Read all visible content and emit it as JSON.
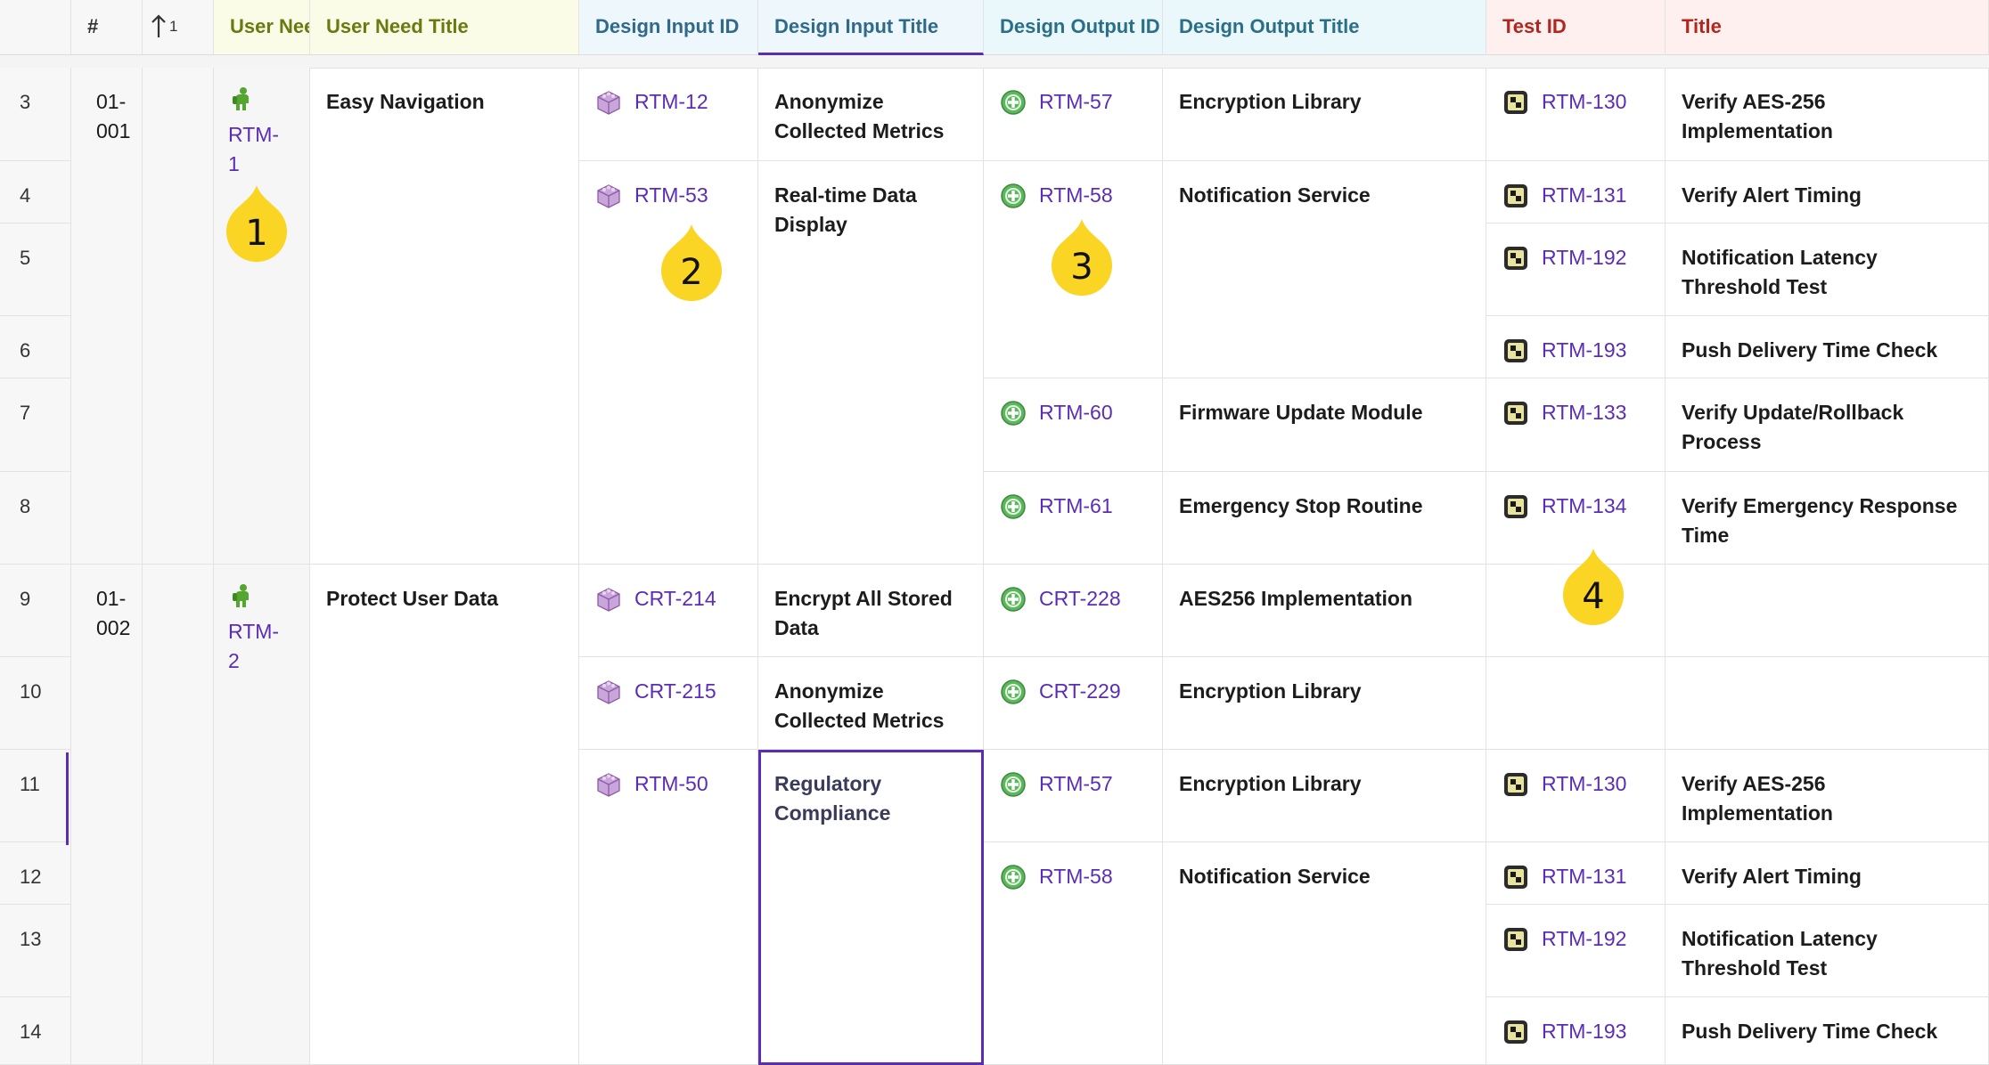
{
  "headers": {
    "num": "#",
    "sort": "1",
    "user_need_id": "User Need",
    "user_need_title": "User Need Title",
    "design_input_id": "Design Input ID",
    "design_input_title": "Design Input Title",
    "design_output_id": "Design Output ID",
    "design_output_title": "Design Output Title",
    "test_id": "Test ID",
    "test_title": "Title"
  },
  "colors": {
    "user_need_header_bg": "#fbfce8",
    "user_need_header_text": "#6b7a10",
    "design_input_header_bg": "#eef7fb",
    "design_input_header_text": "#2f6a8a",
    "design_output_header_bg": "#eaf7fb",
    "design_output_header_text": "#2a6f88",
    "test_header_bg": "#fdf0ee",
    "test_header_text": "#b3261e",
    "link": "#5b2db5",
    "callout": "#fad523"
  },
  "icons": {
    "user_need": "person-icon",
    "design_input": "cube-icon",
    "design_output": "plus-circle-icon",
    "test": "test-tube-icon"
  },
  "row_numbers": [
    "3",
    "4",
    "5",
    "6",
    "7",
    "8",
    "9",
    "10",
    "11",
    "12",
    "13",
    "14"
  ],
  "needs": [
    {
      "num": "01-001",
      "id": "RTM-1",
      "title": "Easy Navigation"
    },
    {
      "num": "01-002",
      "id": "RTM-2",
      "title": "Protect User Data"
    }
  ],
  "inputs": [
    {
      "id": "RTM-12",
      "title": "Anonymize Collected Metrics"
    },
    {
      "id": "RTM-53",
      "title": "Real-time Data Display"
    },
    {
      "id": "CRT-214",
      "title": "Encrypt All Stored Data"
    },
    {
      "id": "CRT-215",
      "title": "Anonymize Collected Metrics"
    },
    {
      "id": "RTM-50",
      "title": "Regulatory Compliance"
    }
  ],
  "outputs": [
    {
      "id": "RTM-57",
      "title": "Encryption Library"
    },
    {
      "id": "RTM-58",
      "title": "Notification Service"
    },
    {
      "id": "RTM-60",
      "title": "Firmware Update Module"
    },
    {
      "id": "RTM-61",
      "title": "Emergency Stop Routine"
    },
    {
      "id": "CRT-228",
      "title": "AES256 Implementation"
    },
    {
      "id": "CRT-229",
      "title": "Encryption Library"
    },
    {
      "id": "RTM-57",
      "title": "Encryption Library"
    },
    {
      "id": "RTM-58",
      "title": "Notification Service"
    }
  ],
  "tests": [
    {
      "id": "RTM-130",
      "title": "Verify AES-256 Implementation"
    },
    {
      "id": "RTM-131",
      "title": "Verify Alert Timing"
    },
    {
      "id": "RTM-192",
      "title": "Notification Latency Threshold Test"
    },
    {
      "id": "RTM-193",
      "title": "Push Delivery Time Check"
    },
    {
      "id": "RTM-133",
      "title": "Verify Update/Rollback Process"
    },
    {
      "id": "RTM-134",
      "title": "Verify Emergency Response Time"
    },
    {
      "id": "",
      "title": ""
    },
    {
      "id": "",
      "title": ""
    },
    {
      "id": "RTM-130",
      "title": "Verify AES-256 Implementation"
    },
    {
      "id": "RTM-131",
      "title": "Verify Alert Timing"
    },
    {
      "id": "RTM-192",
      "title": "Notification Latency Threshold Test"
    },
    {
      "id": "RTM-193",
      "title": "Push Delivery Time Check"
    }
  ],
  "callouts": [
    "1",
    "2",
    "3",
    "4"
  ]
}
